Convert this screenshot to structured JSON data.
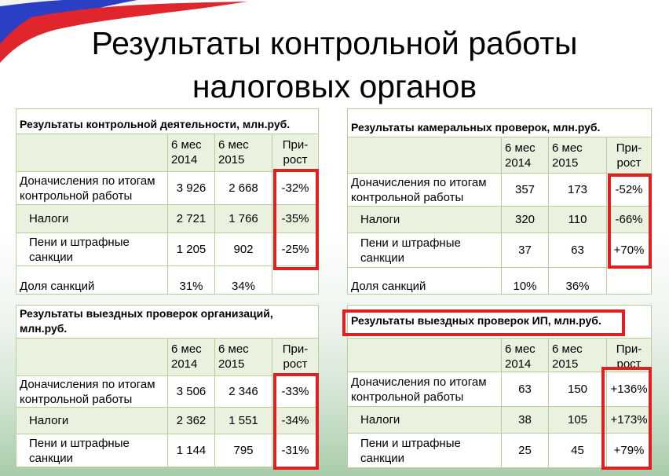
{
  "slide": {
    "title_line1": "Результаты контрольной работы",
    "title_line2": "налоговых органов"
  },
  "colors": {
    "highlight_red": "#e02020",
    "table_alt_green": "#eaf1de",
    "table_border": "#b7cf9c",
    "flag_blue": "#2a3fc4",
    "flag_red": "#e0252d"
  },
  "tables": {
    "control": {
      "caption": "Результаты контрольной деятельности, млн.руб.",
      "col1_l1": "6 мес",
      "col1_l2": "2014",
      "col2_l1": "6 мес",
      "col2_l2": "2015",
      "col3_l1": "При-",
      "col3_l2": "рост",
      "r1_l1": "Доначисления по итогам",
      "r1_l2": "контрольной работы",
      "r1_v1": "3 926",
      "r1_v2": "2 668",
      "r1_g": "-32%",
      "r2_label": "Налоги",
      "r2_v1": "2 721",
      "r2_v2": "1 766",
      "r2_g": "-35%",
      "r3_l1": "Пени и штрафные",
      "r3_l2": "санкции",
      "r3_v1": "1 205",
      "r3_v2": "902",
      "r3_g": "-25%",
      "r4_label": "Доля санкций",
      "r4_v1": "31%",
      "r4_v2": "34%",
      "r4_g": ""
    },
    "cameral": {
      "caption": "Результаты камеральных проверок, млн.руб.",
      "col1_l1": "6 мес",
      "col1_l2": "2014",
      "col2_l1": "6 мес",
      "col2_l2": "2015",
      "col3_l1": "При-",
      "col3_l2": "рост",
      "r1_l1": "Доначисления по итогам",
      "r1_l2": "контрольной работы",
      "r1_v1": "357",
      "r1_v2": "173",
      "r1_g": "-52%",
      "r2_label": "Налоги",
      "r2_v1": "320",
      "r2_v2": "110",
      "r2_g": "-66%",
      "r3_l1": "Пени и штрафные",
      "r3_l2": "санкции",
      "r3_v1": "37",
      "r3_v2": "63",
      "r3_g": "+70%",
      "r4_label": "Доля санкций",
      "r4_v1": "10%",
      "r4_v2": "36%",
      "r4_g": ""
    },
    "field_org": {
      "caption_l1": "Результаты выездных проверок организаций,",
      "caption_l2": "млн.руб.",
      "col1_l1": "6 мес",
      "col1_l2": "2014",
      "col2_l1": "6 мес",
      "col2_l2": "2015",
      "col3_l1": "При-",
      "col3_l2": "рост",
      "r1_l1": "Доначисления по итогам",
      "r1_l2": "контрольной работы",
      "r1_v1": "3 506",
      "r1_v2": "2 346",
      "r1_g": "-33%",
      "r2_label": "Налоги",
      "r2_v1": "2 362",
      "r2_v2": "1 551",
      "r2_g": "-34%",
      "r3_l1": "Пени и штрафные",
      "r3_l2": "санкции",
      "r3_v1": "1 144",
      "r3_v2": "795",
      "r3_g": "-31%"
    },
    "field_ip": {
      "caption": "Результаты выездных  проверок ИП, млн.руб.",
      "col1_l1": "6 мес",
      "col1_l2": "2014",
      "col2_l1": "6 мес",
      "col2_l2": "2015",
      "col3_l1": "При-",
      "col3_l2": "рост",
      "r1_l1": "Доначисления по итогам",
      "r1_l2": "контрольной работы",
      "r1_v1": "63",
      "r1_v2": "150",
      "r1_g": "+136%",
      "r2_label": "Налоги",
      "r2_v1": "38",
      "r2_v2": "105",
      "r2_g": "+173%",
      "r3_l1": "Пени и штрафные",
      "r3_l2": "санкции",
      "r3_v1": "25",
      "r3_v2": "45",
      "r3_g": "+79%"
    }
  }
}
